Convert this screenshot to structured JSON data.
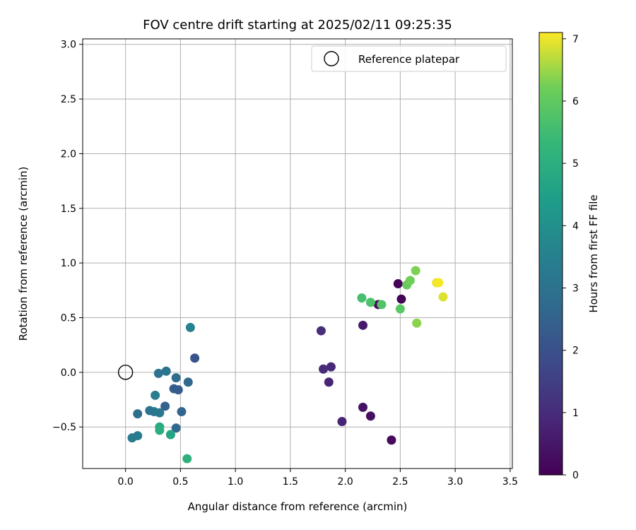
{
  "chart_data": {
    "type": "scatter",
    "title": "FOV centre drift starting at 2025/02/11 09:25:35",
    "xlabel": "Angular distance from reference (arcmin)",
    "ylabel": "Rotation from reference (arcmin)",
    "xlim": [
      -0.39,
      3.52
    ],
    "ylim": [
      -0.88,
      3.05
    ],
    "xticks": [
      0.0,
      0.5,
      1.0,
      1.5,
      2.0,
      2.5,
      3.0,
      3.5
    ],
    "xtick_labels": [
      "0.0",
      "0.5",
      "1.0",
      "1.5",
      "2.0",
      "2.5",
      "3.0",
      "3.5"
    ],
    "yticks": [
      -0.5,
      0.0,
      0.5,
      1.0,
      1.5,
      2.0,
      2.5,
      3.0
    ],
    "ytick_labels": [
      "−0.5",
      "0.0",
      "0.5",
      "1.0",
      "1.5",
      "2.0",
      "2.5",
      "3.0"
    ],
    "grid": true,
    "legend": {
      "placement": "top-right",
      "entries": [
        "Reference platepar"
      ]
    },
    "reference_point": {
      "x": 0.0,
      "y": 0.0
    },
    "colorbar": {
      "label": "Hours from first FF file",
      "range": [
        0,
        7.1
      ],
      "ticks": [
        0,
        1,
        2,
        3,
        4,
        5,
        6,
        7
      ],
      "tick_labels": [
        "0",
        "1",
        "2",
        "3",
        "4",
        "5",
        "6",
        "7"
      ],
      "colormap": "viridis"
    },
    "points": [
      {
        "x": 2.48,
        "y": 0.81,
        "h": 0.05
      },
      {
        "x": 2.51,
        "y": 0.67,
        "h": 0.1
      },
      {
        "x": 2.3,
        "y": 0.62,
        "h": 0.15
      },
      {
        "x": 2.42,
        "y": -0.62,
        "h": 0.2
      },
      {
        "x": 2.23,
        "y": -0.4,
        "h": 0.35
      },
      {
        "x": 2.16,
        "y": -0.32,
        "h": 0.4
      },
      {
        "x": 2.16,
        "y": 0.43,
        "h": 0.6
      },
      {
        "x": 1.97,
        "y": -0.45,
        "h": 0.8
      },
      {
        "x": 1.85,
        "y": -0.09,
        "h": 0.85
      },
      {
        "x": 1.87,
        "y": 0.05,
        "h": 0.9
      },
      {
        "x": 1.8,
        "y": 0.03,
        "h": 1.0
      },
      {
        "x": 1.78,
        "y": 0.38,
        "h": 1.05
      },
      {
        "x": 0.63,
        "y": 0.13,
        "h": 2.1
      },
      {
        "x": 0.48,
        "y": -0.16,
        "h": 2.3
      },
      {
        "x": 0.44,
        "y": -0.15,
        "h": 2.35
      },
      {
        "x": 0.36,
        "y": -0.31,
        "h": 2.5
      },
      {
        "x": 0.51,
        "y": -0.36,
        "h": 2.6
      },
      {
        "x": 0.57,
        "y": -0.09,
        "h": 2.7
      },
      {
        "x": 0.46,
        "y": -0.51,
        "h": 2.7
      },
      {
        "x": 0.46,
        "y": -0.05,
        "h": 2.8
      },
      {
        "x": 0.11,
        "y": -0.38,
        "h": 2.9
      },
      {
        "x": 0.3,
        "y": -0.01,
        "h": 3.0
      },
      {
        "x": 0.37,
        "y": 0.01,
        "h": 3.05
      },
      {
        "x": 0.22,
        "y": -0.35,
        "h": 3.1
      },
      {
        "x": 0.26,
        "y": -0.36,
        "h": 3.15
      },
      {
        "x": 0.31,
        "y": -0.37,
        "h": 3.2
      },
      {
        "x": 0.06,
        "y": -0.6,
        "h": 3.3
      },
      {
        "x": 0.11,
        "y": -0.58,
        "h": 3.35
      },
      {
        "x": 0.27,
        "y": -0.21,
        "h": 3.4
      },
      {
        "x": 0.59,
        "y": 0.41,
        "h": 3.5
      },
      {
        "x": 0.41,
        "y": -0.57,
        "h": 4.4
      },
      {
        "x": 0.41,
        "y": -0.57,
        "h": 4.7
      },
      {
        "x": 0.31,
        "y": -0.5,
        "h": 4.8
      },
      {
        "x": 0.31,
        "y": -0.53,
        "h": 5.0
      },
      {
        "x": 0.56,
        "y": -0.79,
        "h": 5.1
      },
      {
        "x": 2.15,
        "y": 0.68,
        "h": 5.6
      },
      {
        "x": 2.23,
        "y": 0.64,
        "h": 5.7
      },
      {
        "x": 2.33,
        "y": 0.62,
        "h": 5.8
      },
      {
        "x": 2.5,
        "y": 0.58,
        "h": 5.9
      },
      {
        "x": 2.56,
        "y": 0.8,
        "h": 6.1
      },
      {
        "x": 2.59,
        "y": 0.84,
        "h": 6.2
      },
      {
        "x": 2.64,
        "y": 0.93,
        "h": 6.3
      },
      {
        "x": 2.65,
        "y": 0.45,
        "h": 6.4
      },
      {
        "x": 2.89,
        "y": 0.69,
        "h": 6.9
      },
      {
        "x": 2.83,
        "y": 0.82,
        "h": 7.0
      },
      {
        "x": 2.85,
        "y": 0.82,
        "h": 7.05
      }
    ]
  }
}
